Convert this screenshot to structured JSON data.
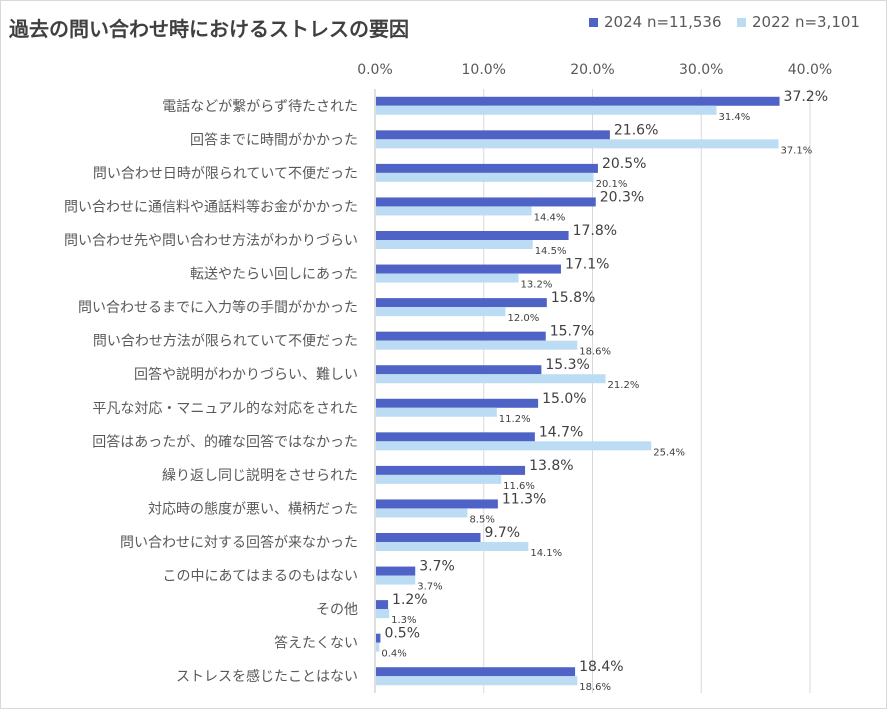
{
  "chart_data": {
    "type": "bar",
    "orientation": "horizontal",
    "title": "過去の問い合わせ時におけるストレスの要因",
    "xlim": [
      0,
      40
    ],
    "x_ticks": [
      "0.0%",
      "10.0%",
      "20.0%",
      "30.0%",
      "40.0%"
    ],
    "x_tick_values": [
      0,
      10,
      20,
      30,
      40
    ],
    "grid": true,
    "legend_position": "top-right",
    "categories": [
      "電話などが繋がらず待たされた",
      "回答までに時間がかかった",
      "問い合わせ日時が限られていて不便だった",
      "問い合わせに通信料や通話料等お金がかかった",
      "問い合わせ先や問い合わせ方法がわかりづらい",
      "転送やたらい回しにあった",
      "問い合わせるまでに入力等の手間がかかった",
      "問い合わせ方法が限られていて不便だった",
      "回答や説明がわかりづらい、難しい",
      "平凡な対応・マニュアル的な対応をされた",
      "回答はあったが、的確な回答ではなかった",
      "繰り返し同じ説明をさせられた",
      "対応時の態度が悪い、横柄だった",
      "問い合わせに対する回答が来なかった",
      "この中にあてはまるのもはない",
      "その他",
      "答えたくない",
      "ストレスを感じたことはない"
    ],
    "series": [
      {
        "name": "2024 n=11,536",
        "color": "#4f63c6",
        "values": [
          37.2,
          21.6,
          20.5,
          20.3,
          17.8,
          17.1,
          15.8,
          15.7,
          15.3,
          15.0,
          14.7,
          13.8,
          11.3,
          9.7,
          3.7,
          1.2,
          0.5,
          18.4
        ],
        "labels": [
          "37.2%",
          "21.6%",
          "20.5%",
          "20.3%",
          "17.8%",
          "17.1%",
          "15.8%",
          "15.7%",
          "15.3%",
          "15.0%",
          "14.7%",
          "13.8%",
          "11.3%",
          "9.7%",
          "3.7%",
          "1.2%",
          "0.5%",
          "18.4%"
        ]
      },
      {
        "name": "2022 n=3,101",
        "color": "#bcdcf4",
        "values": [
          31.4,
          37.1,
          20.1,
          14.4,
          14.5,
          13.2,
          12.0,
          18.6,
          21.2,
          11.2,
          25.4,
          11.6,
          8.5,
          14.1,
          3.7,
          1.3,
          0.4,
          18.6
        ],
        "labels": [
          "31.4%",
          "37.1%",
          "20.1%",
          "14.4%",
          "14.5%",
          "13.2%",
          "12.0%",
          "18.6%",
          "21.2%",
          "11.2%",
          "25.4%",
          "11.6%",
          "8.5%",
          "14.1%",
          "3.7%",
          "1.3%",
          "0.4%",
          "18.6%"
        ]
      }
    ]
  }
}
